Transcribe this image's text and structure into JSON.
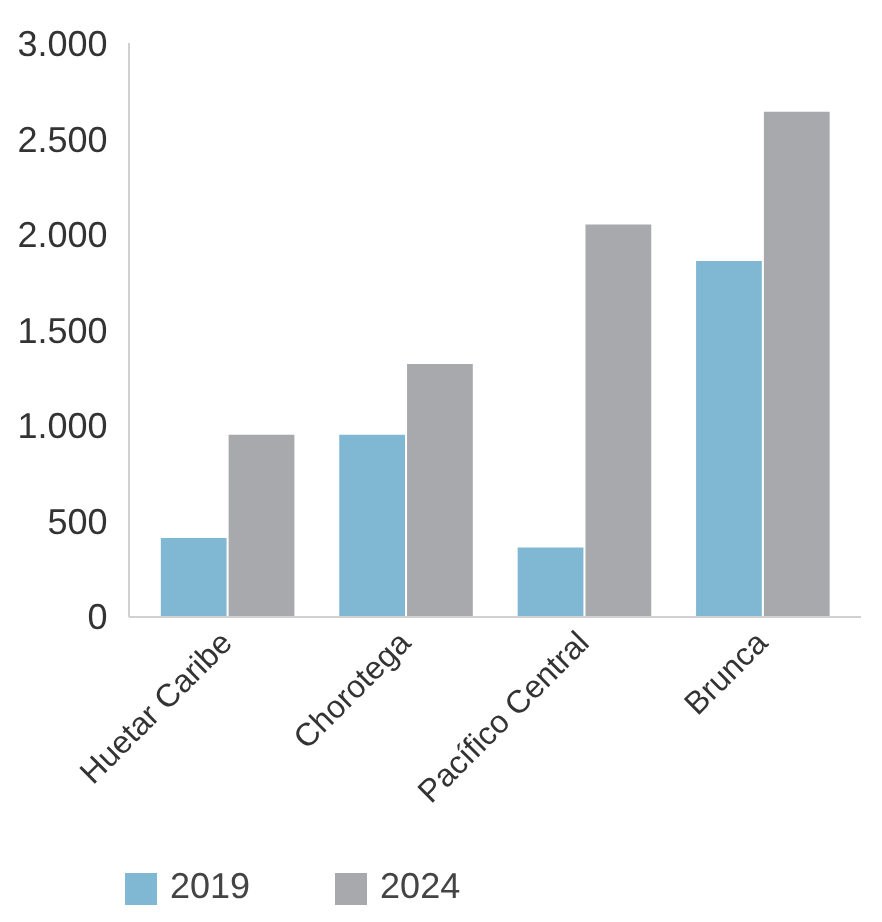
{
  "chart_data": {
    "type": "bar",
    "categories": [
      "Huetar Caribe",
      "Chorotega",
      "Pacífico Central",
      "Brunca"
    ],
    "series": [
      {
        "name": "2019",
        "color": "#80b7d2",
        "values": [
          410,
          950,
          360,
          1860
        ]
      },
      {
        "name": "2024",
        "color": "#a8a9ad",
        "values": [
          950,
          1320,
          2050,
          2640
        ]
      }
    ],
    "ylim": [
      0,
      3000
    ],
    "yticks": [
      0,
      {
        "value": 500,
        "label": "500"
      },
      {
        "value": 1000,
        "label": "1.000"
      },
      {
        "value": 1500,
        "label": "1.500"
      },
      {
        "value": 2000,
        "label": "2.000"
      },
      {
        "value": 2500,
        "label": "2.500"
      },
      {
        "value": 3000,
        "label": "3.000"
      }
    ],
    "grid": false,
    "legend": "bottom"
  }
}
